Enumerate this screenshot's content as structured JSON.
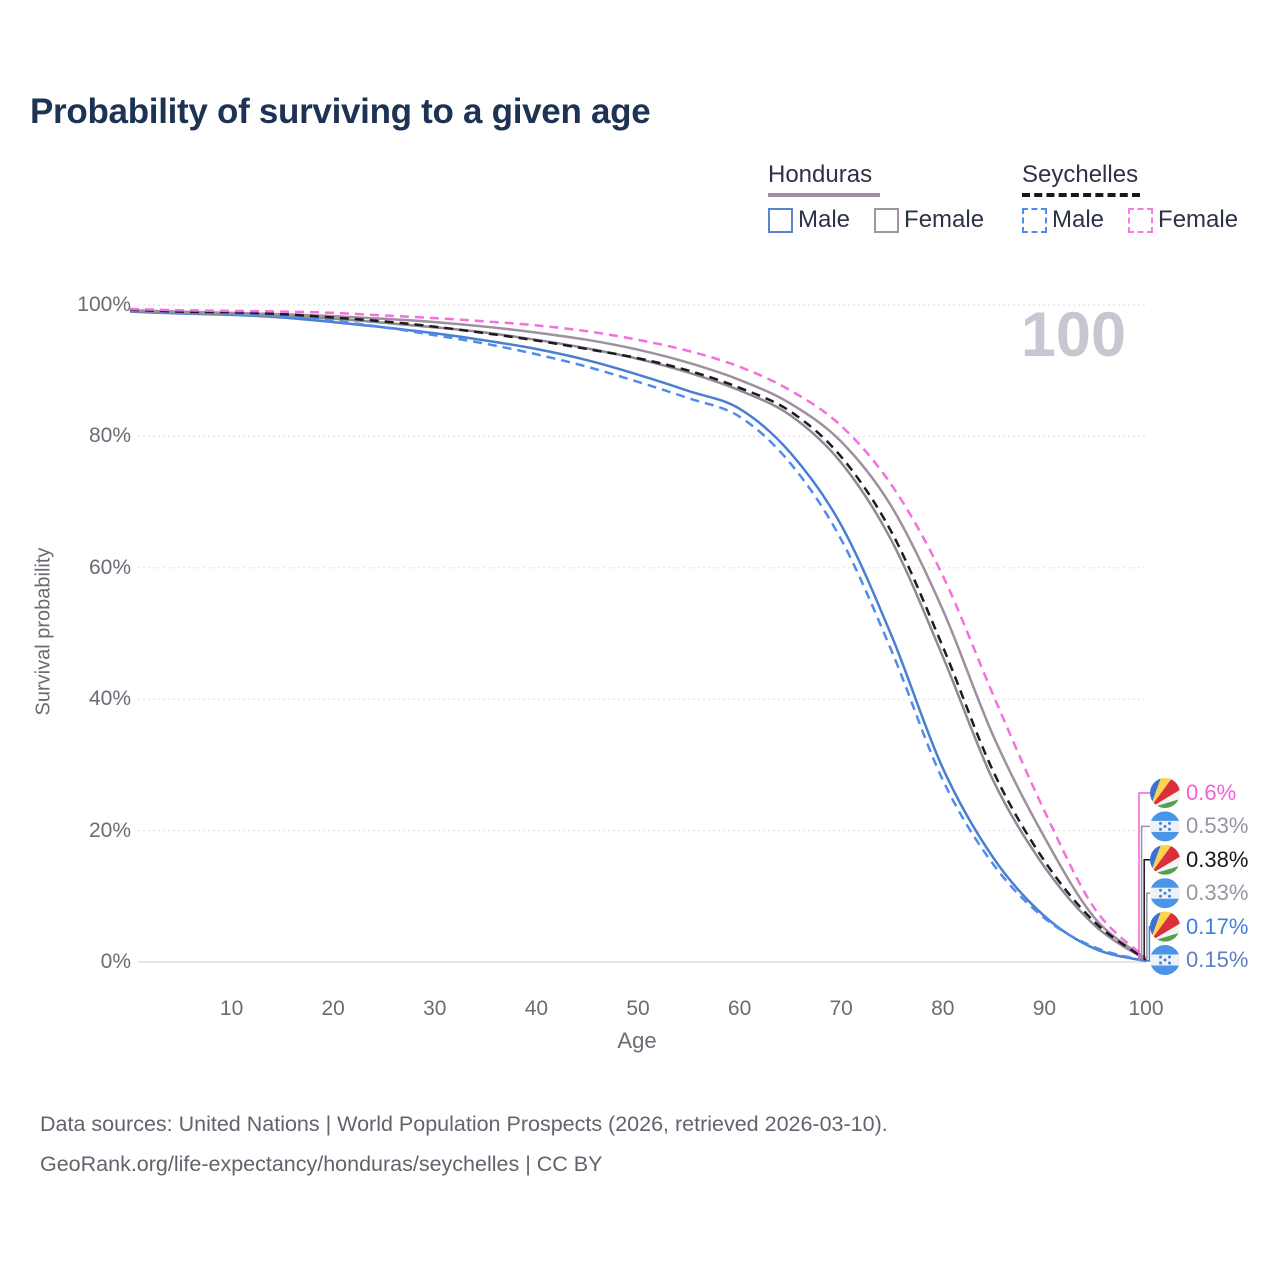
{
  "title": "Probability of surviving to a given age",
  "watermark": "100",
  "legend": {
    "groups": [
      {
        "country": "Honduras",
        "line_style": "solid",
        "underline_color": "#9c8fa0",
        "items": [
          {
            "label": "Male",
            "color": "#5b84cc",
            "dashed": false
          },
          {
            "label": "Female",
            "color": "#a293a2",
            "dashed": false
          }
        ]
      },
      {
        "country": "Seychelles",
        "line_style": "dashed",
        "underline_color": "#17181d",
        "items": [
          {
            "label": "Male",
            "color": "#4f8cf0",
            "dashed": true
          },
          {
            "label": "Female",
            "color": "#f87ae4",
            "dashed": true
          }
        ]
      }
    ]
  },
  "chart_data": {
    "type": "line",
    "title": "Probability of surviving to a given age",
    "xlabel": "Age",
    "ylabel": "Survival probability",
    "xlim": [
      0,
      100
    ],
    "ylim": [
      0,
      100
    ],
    "grid": "horizontal dotted",
    "legend_position": "top-right",
    "x_ticks": [
      {
        "value": 10,
        "label": "10"
      },
      {
        "value": 20,
        "label": "20"
      },
      {
        "value": 30,
        "label": "30"
      },
      {
        "value": 40,
        "label": "40"
      },
      {
        "value": 50,
        "label": "50"
      },
      {
        "value": 60,
        "label": "60"
      },
      {
        "value": 70,
        "label": "70"
      },
      {
        "value": 80,
        "label": "80"
      },
      {
        "value": 90,
        "label": "90"
      },
      {
        "value": 100,
        "label": "100"
      }
    ],
    "y_ticks": [
      {
        "value": 0,
        "label": "0%"
      },
      {
        "value": 20,
        "label": "20%"
      },
      {
        "value": 40,
        "label": "40%"
      },
      {
        "value": 60,
        "label": "60%"
      },
      {
        "value": 80,
        "label": "80%"
      },
      {
        "value": 100,
        "label": "100%"
      }
    ],
    "x": [
      0,
      5,
      10,
      15,
      20,
      25,
      30,
      35,
      40,
      45,
      50,
      55,
      60,
      65,
      70,
      75,
      80,
      85,
      90,
      95,
      100
    ],
    "series": [
      {
        "name": "Honduras Male",
        "country": "Honduras",
        "sex": "Male",
        "color": "#4a7fd0",
        "dashed": false,
        "values": [
          99.0,
          98.7,
          98.5,
          98.1,
          97.4,
          96.6,
          95.7,
          94.6,
          93.3,
          91.6,
          89.4,
          86.9,
          84.2,
          77.5,
          66.5,
          49.5,
          29.5,
          15.8,
          7.0,
          2.0,
          0.15
        ]
      },
      {
        "name": "Honduras Both sexes",
        "country": "Honduras",
        "sex": "Both",
        "color": "#8f8a96",
        "dashed": false,
        "values": [
          99.1,
          98.8,
          98.6,
          98.3,
          97.9,
          97.3,
          96.6,
          95.8,
          94.7,
          93.4,
          91.8,
          89.7,
          87.0,
          83.2,
          76.0,
          64.0,
          46.5,
          27.5,
          14.5,
          5.5,
          0.33
        ]
      },
      {
        "name": "Honduras Female",
        "country": "Honduras",
        "sex": "Female",
        "color": "#9f8f9f",
        "dashed": false,
        "values": [
          99.2,
          99.0,
          98.8,
          98.6,
          98.3,
          97.9,
          97.4,
          96.7,
          95.8,
          94.7,
          93.2,
          91.2,
          88.6,
          85.0,
          79.2,
          69.2,
          53.6,
          34.3,
          19.0,
          6.6,
          0.53
        ]
      },
      {
        "name": "Seychelles Male",
        "country": "Seychelles",
        "sex": "Male",
        "color": "#4f8cf0",
        "dashed": true,
        "values": [
          99.2,
          98.9,
          98.7,
          98.3,
          97.6,
          96.6,
          95.4,
          94.1,
          92.5,
          90.6,
          88.3,
          85.8,
          83.0,
          75.9,
          64.3,
          47.2,
          27.7,
          14.8,
          6.7,
          2.2,
          0.17
        ]
      },
      {
        "name": "Seychelles Both sexes",
        "country": "Seychelles",
        "sex": "Both",
        "color": "#1c1c20",
        "dashed": true,
        "values": [
          99.3,
          99.0,
          98.9,
          98.6,
          98.1,
          97.5,
          96.7,
          95.7,
          94.6,
          93.3,
          91.9,
          90.0,
          87.4,
          83.8,
          76.9,
          65.3,
          48.0,
          28.9,
          15.4,
          6.0,
          0.38
        ]
      },
      {
        "name": "Seychelles Female",
        "country": "Seychelles",
        "sex": "Female",
        "color": "#f570dd",
        "dashed": true,
        "values": [
          99.4,
          99.2,
          99.1,
          99.0,
          98.8,
          98.4,
          98.0,
          97.5,
          96.9,
          96.0,
          94.7,
          93.0,
          90.6,
          87.0,
          81.6,
          72.5,
          58.8,
          40.5,
          23.0,
          8.0,
          0.6
        ]
      }
    ],
    "end_labels": [
      {
        "text": "0.6%",
        "color": "#f75fd6",
        "flag": "seychelles",
        "series": "Seychelles Female"
      },
      {
        "text": "0.53%",
        "color": "#9c92a3",
        "flag": "honduras",
        "series": "Honduras Female"
      },
      {
        "text": "0.38%",
        "color": "#17171c",
        "flag": "seychelles",
        "series": "Seychelles Both sexes"
      },
      {
        "text": "0.33%",
        "color": "#9a94a2",
        "flag": "honduras",
        "series": "Honduras Both sexes"
      },
      {
        "text": "0.17%",
        "color": "#3f7fe3",
        "flag": "seychelles",
        "series": "Seychelles Male"
      },
      {
        "text": "0.15%",
        "color": "#5c7ec6",
        "flag": "honduras",
        "series": "Honduras Male"
      }
    ],
    "annotation": "100"
  },
  "footer": {
    "line1": "Data sources: United Nations | World Population Prospects (2026, retrieved 2026-03-10).",
    "line2": "GeoRank.org/life-expectancy/honduras/seychelles | CC BY"
  }
}
